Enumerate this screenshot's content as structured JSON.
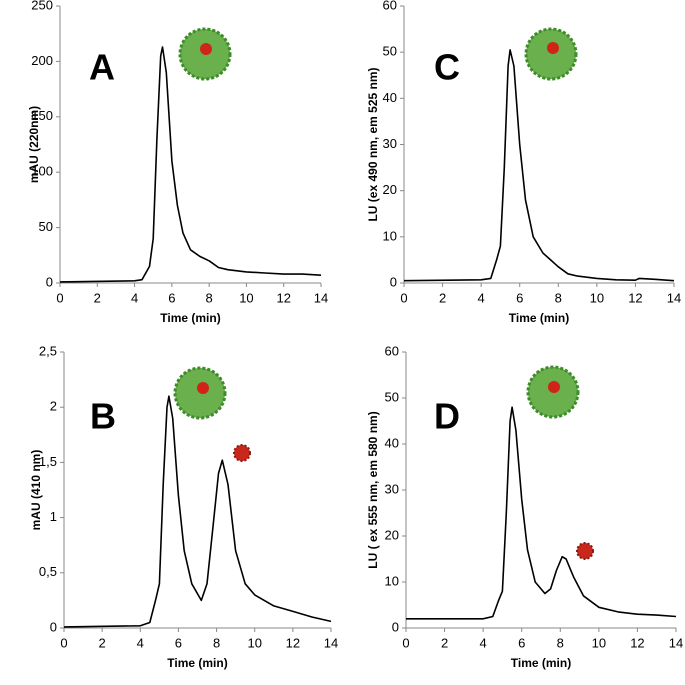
{
  "chart_data": [
    {
      "type": "line",
      "label": "A",
      "x_label": "Time (min)",
      "y_label": "mAU (220nm)",
      "color": "#000000",
      "x": [
        0,
        4,
        4.4,
        4.8,
        5.0,
        5.2,
        5.4,
        5.5,
        5.7,
        6.0,
        6.3,
        6.6,
        7,
        7.5,
        8,
        8.5,
        9,
        10,
        11,
        12,
        13,
        14
      ],
      "values": [
        1,
        2,
        3,
        15,
        40,
        130,
        205,
        213,
        190,
        110,
        70,
        45,
        30,
        24,
        20,
        14,
        12,
        10,
        9,
        8,
        8,
        7
      ],
      "xlim": [
        0,
        14
      ],
      "ylim": [
        0,
        250
      ],
      "xticks": [
        0,
        2,
        4,
        6,
        8,
        10,
        12,
        14
      ],
      "yticks": [
        0,
        50,
        100,
        150,
        200,
        250
      ]
    },
    {
      "type": "line",
      "label": "C",
      "x_label": "Time (min)",
      "y_label": "LU (ex 490 nm, em 525 nm)",
      "color": "#000000",
      "x": [
        0,
        4,
        4.5,
        4.8,
        5.0,
        5.2,
        5.4,
        5.5,
        5.7,
        6.0,
        6.3,
        6.7,
        7.2,
        7.6,
        8,
        8.5,
        9,
        10,
        11,
        12,
        12.2,
        13,
        14
      ],
      "values": [
        0.5,
        0.7,
        1,
        5,
        8,
        25,
        47,
        50.5,
        47,
        30,
        18,
        10,
        6.5,
        5,
        3.5,
        2,
        1.5,
        1,
        0.7,
        0.6,
        1,
        0.8,
        0.5
      ],
      "xlim": [
        0,
        14
      ],
      "ylim": [
        0,
        60
      ],
      "xticks": [
        0,
        2,
        4,
        6,
        8,
        10,
        12,
        14
      ],
      "yticks": [
        0,
        10,
        20,
        30,
        40,
        50,
        60
      ]
    },
    {
      "type": "line",
      "label": "B",
      "x_label": "Time (min)",
      "y_label": "mAU (410 nm)",
      "color": "#000000",
      "x": [
        0,
        4,
        4.5,
        4.8,
        5.0,
        5.2,
        5.4,
        5.5,
        5.7,
        6.0,
        6.3,
        6.7,
        7.2,
        7.5,
        7.8,
        8.1,
        8.3,
        8.6,
        9.0,
        9.5,
        10,
        11,
        12,
        13,
        14
      ],
      "values": [
        0.01,
        0.02,
        0.05,
        0.25,
        0.4,
        1.3,
        2.0,
        2.1,
        1.9,
        1.2,
        0.7,
        0.4,
        0.25,
        0.4,
        0.9,
        1.4,
        1.52,
        1.3,
        0.7,
        0.4,
        0.3,
        0.2,
        0.15,
        0.1,
        0.06
      ],
      "xlim": [
        0,
        14
      ],
      "ylim": [
        0,
        2.5
      ],
      "xticks": [
        0,
        2,
        4,
        6,
        8,
        10,
        12,
        14
      ],
      "yticks": [
        0,
        {
          "value": 0.5,
          "label": "0,5"
        },
        1,
        {
          "value": 1.5,
          "label": "1,5"
        },
        2,
        {
          "value": 2.5,
          "label": "2,5"
        }
      ]
    },
    {
      "type": "line",
      "label": "D",
      "x_label": "Time (min)",
      "y_label": "LU ( ex 555 nm, em 580 nm)",
      "color": "#000000",
      "x": [
        0,
        4,
        4.5,
        4.8,
        5.0,
        5.2,
        5.4,
        5.5,
        5.7,
        6.0,
        6.3,
        6.7,
        7.2,
        7.5,
        7.8,
        8.1,
        8.3,
        8.7,
        9.2,
        10,
        11,
        12,
        13,
        14
      ],
      "values": [
        2,
        2,
        2.5,
        6,
        8,
        25,
        45,
        48,
        43,
        28,
        17,
        10,
        7.5,
        8.5,
        12.5,
        15.5,
        15,
        11,
        7,
        4.5,
        3.5,
        3,
        2.8,
        2.5
      ],
      "xlim": [
        0,
        14
      ],
      "ylim": [
        0,
        60
      ],
      "xticks": [
        0,
        2,
        4,
        6,
        8,
        10,
        12,
        14
      ],
      "yticks": [
        0,
        10,
        20,
        30,
        40,
        50,
        60
      ]
    }
  ]
}
